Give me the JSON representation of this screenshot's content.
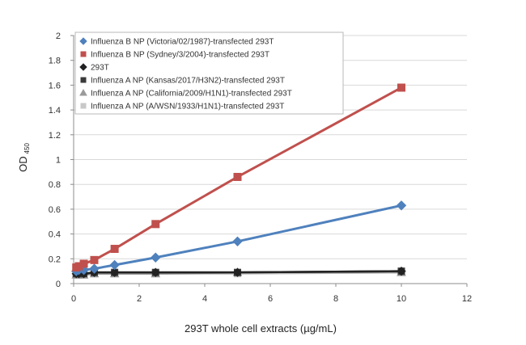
{
  "chart_data": {
    "type": "line",
    "title": "",
    "xlabel": "293T whole cell extracts (µg/mL)",
    "ylabel_main": "OD",
    "ylabel_sub": "450",
    "xlim": [
      0,
      12
    ],
    "ylim": [
      0,
      2
    ],
    "x_ticks": [
      "0",
      "2",
      "4",
      "6",
      "8",
      "10",
      "12"
    ],
    "y_ticks": [
      "0",
      "0.2",
      "0.4",
      "0.6",
      "0.8",
      "1",
      "1.2",
      "1.4",
      "1.6",
      "1.8",
      "2"
    ],
    "grid": "horizontal",
    "legend_position": "top-left",
    "x": [
      0.08,
      0.16,
      0.31,
      0.63,
      1.25,
      2.5,
      5,
      10
    ],
    "series": [
      {
        "name": "Influenza B NP (Victoria/02/1987)-transfected 293T",
        "color": "#4F81BD",
        "marker": "diamond",
        "values": [
          0.1,
          0.11,
          0.11,
          0.12,
          0.15,
          0.21,
          0.34,
          0.63
        ]
      },
      {
        "name": "Influenza B NP (Sydney/3/2004)-transfected 293T",
        "color": "#C0504D",
        "marker": "square",
        "values": [
          0.13,
          0.14,
          0.16,
          0.19,
          0.28,
          0.48,
          0.86,
          1.58
        ]
      },
      {
        "name": "293T",
        "color": "#222222",
        "marker": "diamond",
        "values": [
          0.08,
          0.08,
          0.08,
          0.09,
          0.09,
          0.09,
          0.09,
          0.1
        ]
      },
      {
        "name": "Influenza A NP (Kansas/2017/H3N2)-transfected 293T",
        "color": "#3a3a3a",
        "marker": "square",
        "values": [
          0.08,
          0.08,
          0.08,
          0.09,
          0.09,
          0.09,
          0.09,
          0.1
        ]
      },
      {
        "name": "Influenza A NP (California/2009/H1N1)-transfected 293T",
        "color": "#9a9a9a",
        "marker": "triangle",
        "values": [
          0.07,
          0.07,
          0.07,
          0.08,
          0.08,
          0.08,
          0.09,
          0.09
        ]
      },
      {
        "name": "Influenza A NP (A/WSN/1933/H1N1)-transfected 293T",
        "color": "#c8c8c8",
        "marker": "square",
        "values": [
          0.07,
          0.07,
          0.07,
          0.08,
          0.08,
          0.08,
          0.08,
          0.09
        ]
      }
    ]
  }
}
